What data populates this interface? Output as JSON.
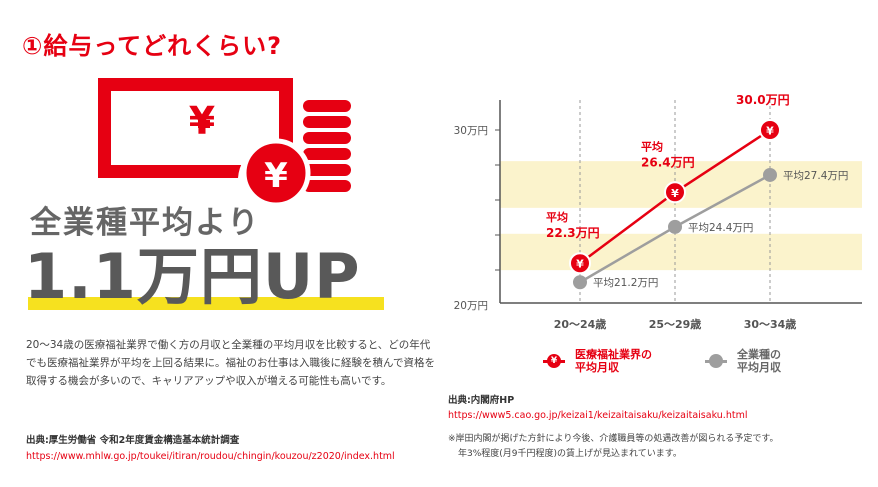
{
  "title": "①給与ってどれくらい?",
  "left": {
    "subhead": "全業種平均より",
    "big_text": "1.1万円UP",
    "yen_symbol": "¥",
    "description": "20～34歳の医療福祉業界で働く方の月収と全業種の平均月収を比較すると、どの年代でも医療福祉業界が平均を上回る結果に。福祉のお仕事は入職後に経験を積んで資格を取得する機会が多いので、キャリアアップや収入が増える可能性も高いです。",
    "source_label": "出典:厚生労働省 令和2年度賃金構造基本統計調査",
    "source_url": "https://www.mhlw.go.jp/toukei/itiran/roudou/chingin/kouzou/z2020/index.html"
  },
  "chart_data": {
    "type": "line",
    "categories": [
      "20～24歳",
      "25～29歳",
      "30～34歳"
    ],
    "y_ticks": [
      "30万円",
      "20万円"
    ],
    "ylim": [
      20,
      30
    ],
    "series": [
      {
        "name": "医療福祉業界の平均月収",
        "values": [
          22.3,
          26.4,
          30.0
        ],
        "color": "#e60012",
        "marker": "¥",
        "labels": [
          {
            "top": "平均",
            "bottom": "22.3万円"
          },
          {
            "top": "平均",
            "bottom": "26.4万円"
          },
          {
            "top": "平均",
            "bottom": "30.0万円"
          }
        ]
      },
      {
        "name": "全業種の平均月収",
        "values": [
          21.2,
          24.4,
          27.4
        ],
        "color": "#9e9e9e",
        "labels": [
          "平均21.2万円",
          "平均24.4万円",
          "平均27.4万円"
        ]
      }
    ],
    "legend": [
      {
        "line1": "医療福祉業界の",
        "line2": "平均月収",
        "color": "#e60012",
        "marker": "¥"
      },
      {
        "line1": "全業種の",
        "line2": "平均月収",
        "color": "#9e9e9e",
        "marker": ""
      }
    ],
    "band_color": "#fbf3cc",
    "legend_position": "bottom"
  },
  "right": {
    "source_label": "出典:内閣府HP",
    "source_url": "https://www5.cao.go.jp/keizai1/keizaitaisaku/keizaitaisaku.html",
    "note_line1": "※岸田内閣が掲げた方針により今後、介護職員等の処遇改善が図られる予定です。",
    "note_line2": "年3%程度(月9千円程度)の賃上げが見込まれています。"
  }
}
